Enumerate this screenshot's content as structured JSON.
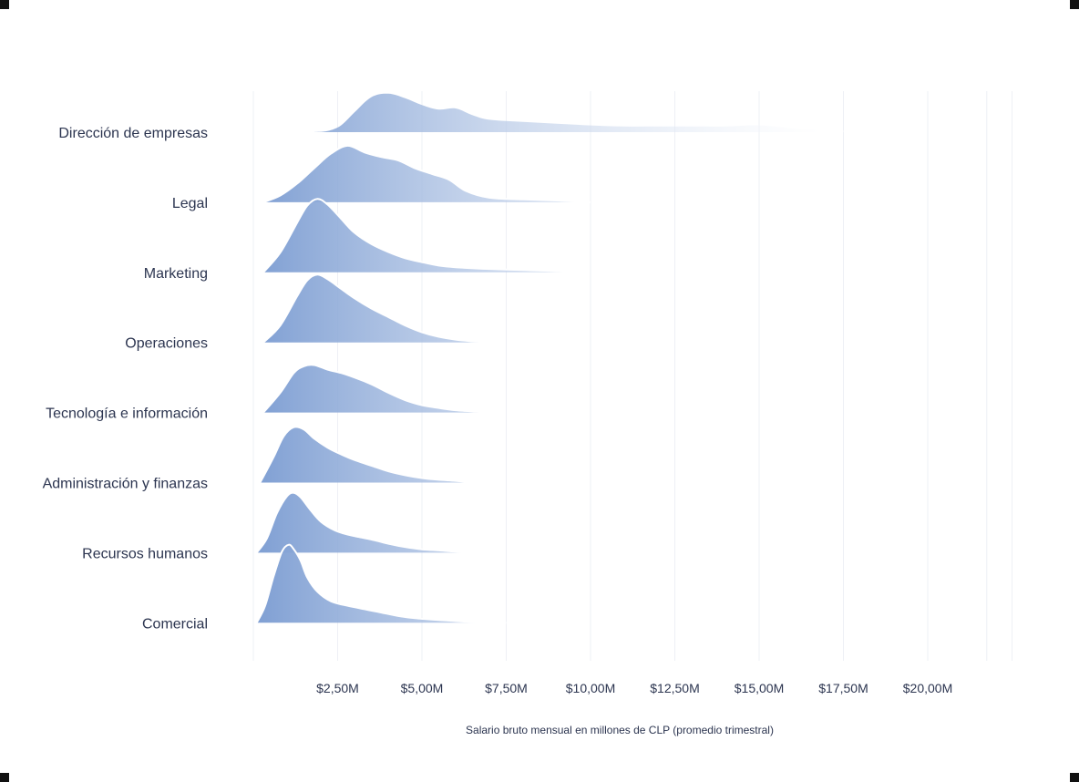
{
  "chart_data": {
    "type": "ridgeline",
    "xlabel": "Salario bruto mensual en millones de CLP (promedio trimestral)",
    "xlim": [
      0,
      22.5
    ],
    "x_ticks": [
      2.5,
      5,
      7.5,
      10,
      12.5,
      15,
      17.5,
      20
    ],
    "x_tick_labels": [
      "$2,50M",
      "$5,00M",
      "$7,50M",
      "$10,00M",
      "$12,50M",
      "$15,00M",
      "$17,50M",
      "$20,00M"
    ],
    "fill_color_start": "#7f9fd3",
    "fill_color_end": "#ffffff",
    "outline_color": "#ffffff",
    "grid": true,
    "series": [
      {
        "name": "Dirección de empresas",
        "x": [
          1.8,
          2.2,
          2.6,
          3.0,
          3.5,
          4.0,
          4.5,
          5.0,
          5.5,
          6.0,
          6.5,
          7.0,
          8.0,
          9.0,
          10.0,
          11.0,
          12.0,
          13.0,
          14.0,
          15.0,
          16.0,
          17.0,
          18.0,
          18.5
        ],
        "density": [
          0.0,
          0.02,
          0.12,
          0.35,
          0.62,
          0.68,
          0.6,
          0.48,
          0.4,
          0.42,
          0.3,
          0.22,
          0.18,
          0.15,
          0.12,
          0.1,
          0.1,
          0.1,
          0.1,
          0.12,
          0.07,
          0.04,
          0.02,
          0.0
        ]
      },
      {
        "name": "Legal",
        "x": [
          0.3,
          0.8,
          1.3,
          1.8,
          2.3,
          2.8,
          3.3,
          3.8,
          4.3,
          4.8,
          5.3,
          5.8,
          6.3,
          7.0,
          8.0,
          9.0,
          10.0
        ],
        "density": [
          0.0,
          0.12,
          0.33,
          0.6,
          0.86,
          1.0,
          0.88,
          0.8,
          0.74,
          0.6,
          0.5,
          0.4,
          0.2,
          0.08,
          0.05,
          0.03,
          0.0
        ]
      },
      {
        "name": "Marketing",
        "x": [
          0.3,
          0.8,
          1.3,
          1.6,
          1.9,
          2.2,
          2.6,
          3.0,
          3.5,
          4.0,
          4.5,
          5.0,
          5.5,
          6.0,
          7.0,
          8.0,
          9.0,
          9.5
        ],
        "density": [
          0.0,
          0.35,
          0.88,
          1.18,
          1.3,
          1.2,
          0.95,
          0.7,
          0.5,
          0.36,
          0.25,
          0.18,
          0.12,
          0.09,
          0.06,
          0.04,
          0.02,
          0.0
        ]
      },
      {
        "name": "Operaciones",
        "x": [
          0.3,
          0.8,
          1.3,
          1.6,
          1.9,
          2.2,
          2.6,
          3.0,
          3.5,
          4.0,
          4.5,
          5.0,
          5.5,
          6.0,
          6.5,
          7.0
        ],
        "density": [
          0.0,
          0.3,
          0.82,
          1.1,
          1.2,
          1.12,
          0.95,
          0.78,
          0.6,
          0.45,
          0.3,
          0.18,
          0.1,
          0.05,
          0.02,
          0.0
        ]
      },
      {
        "name": "Tecnología e información",
        "x": [
          0.3,
          0.8,
          1.2,
          1.5,
          1.8,
          2.2,
          2.6,
          3.0,
          3.5,
          4.0,
          4.5,
          5.0,
          5.5,
          6.0,
          6.5,
          7.0
        ],
        "density": [
          0.0,
          0.35,
          0.7,
          0.82,
          0.84,
          0.76,
          0.7,
          0.62,
          0.5,
          0.35,
          0.22,
          0.13,
          0.08,
          0.04,
          0.02,
          0.0
        ]
      },
      {
        "name": "Administración y finanzas",
        "x": [
          0.2,
          0.6,
          0.9,
          1.2,
          1.5,
          1.8,
          2.2,
          2.6,
          3.0,
          3.5,
          4.0,
          4.5,
          5.0,
          5.5,
          6.0,
          6.5
        ],
        "density": [
          0.0,
          0.45,
          0.82,
          0.98,
          0.94,
          0.78,
          0.62,
          0.5,
          0.4,
          0.3,
          0.2,
          0.13,
          0.08,
          0.05,
          0.03,
          0.0
        ]
      },
      {
        "name": "Recursos humanos",
        "x": [
          0.1,
          0.4,
          0.7,
          1.0,
          1.2,
          1.4,
          1.7,
          2.0,
          2.4,
          2.8,
          3.2,
          3.6,
          4.0,
          4.5,
          5.0,
          5.5,
          6.0,
          6.5,
          7.0
        ],
        "density": [
          0.0,
          0.25,
          0.7,
          1.0,
          1.06,
          0.98,
          0.75,
          0.55,
          0.4,
          0.32,
          0.27,
          0.22,
          0.16,
          0.1,
          0.06,
          0.04,
          0.02,
          0.01,
          0.0
        ]
      },
      {
        "name": "Comercial",
        "x": [
          0.1,
          0.35,
          0.6,
          0.85,
          1.05,
          1.2,
          1.4,
          1.6,
          1.9,
          2.3,
          2.8,
          3.3,
          3.8,
          4.3,
          4.8,
          5.5,
          6.3,
          7.5
        ],
        "density": [
          0.0,
          0.3,
          0.82,
          1.26,
          1.38,
          1.3,
          1.1,
          0.8,
          0.55,
          0.38,
          0.3,
          0.24,
          0.18,
          0.12,
          0.08,
          0.05,
          0.02,
          0.0
        ]
      }
    ]
  }
}
